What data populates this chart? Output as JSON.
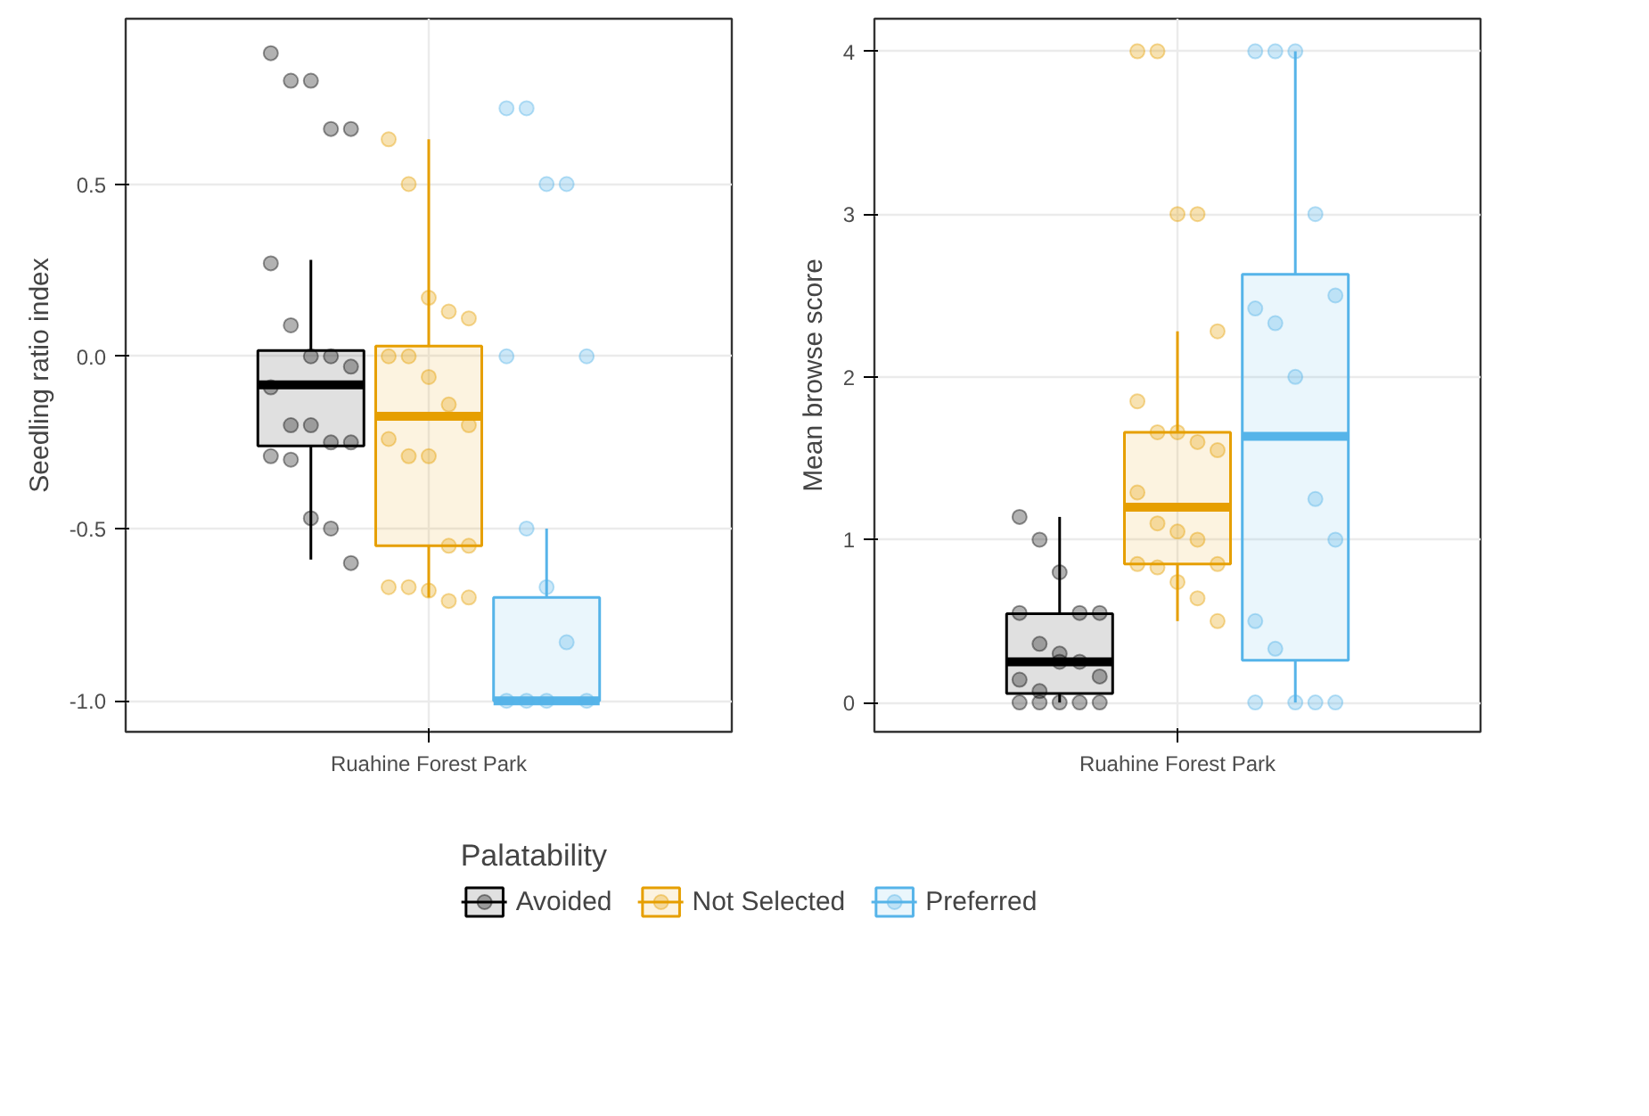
{
  "chart_data": [
    {
      "type": "box",
      "ylabel": "Seedling ratio index",
      "categories": [
        "Ruahine Forest Park"
      ],
      "ylim": [
        -1.09,
        0.98
      ],
      "yticks": [
        {
          "value": -1.0,
          "label": "-1.0"
        },
        {
          "value": -0.5,
          "label": "-0.5"
        },
        {
          "value": 0.0,
          "label": "0.0"
        },
        {
          "value": 0.5,
          "label": "0.5"
        }
      ],
      "grid": true,
      "legend": "bottom",
      "legend_title": "Palatability",
      "series": [
        {
          "name": "Avoided",
          "color": "#000000",
          "boxes": [
            {
              "low": -0.59,
              "q1": -0.26,
              "median": -0.083,
              "q3": 0.017,
              "high": 0.28
            }
          ]
        },
        {
          "name": "Not Selected",
          "color": "#e69f00",
          "boxes": [
            {
              "low": -0.7,
              "q1": -0.55,
              "median": -0.174,
              "q3": 0.03,
              "high": 0.63
            }
          ]
        },
        {
          "name": "Preferred",
          "color": "#56b4e9",
          "boxes": [
            {
              "low": -1.0,
              "q1": -1.0,
              "median": -1.0,
              "q3": -0.7,
              "high": -0.5
            }
          ]
        },
        {
          "type": "scatter",
          "color": "#000000",
          "x": [
            "Ruahine Forest Park",
            "Ruahine Forest Park",
            "Ruahine Forest Park",
            "Ruahine Forest Park",
            "Ruahine Forest Park",
            "Ruahine Forest Park",
            "Ruahine Forest Park",
            "Ruahine Forest Park",
            "Ruahine Forest Park",
            "Ruahine Forest Park",
            "Ruahine Forest Park",
            "Ruahine Forest Park",
            "Ruahine Forest Park",
            "Ruahine Forest Park",
            "Ruahine Forest Park",
            "Ruahine Forest Park",
            "Ruahine Forest Park",
            "Ruahine Forest Park",
            "Ruahine Forest Park",
            "Ruahine Forest Park"
          ],
          "values": [
            0.88,
            0.8,
            0.8,
            0.66,
            0.66,
            0.27,
            0.09,
            0.0,
            0.0,
            -0.03,
            -0.09,
            -0.2,
            -0.2,
            -0.25,
            -0.25,
            -0.29,
            -0.3,
            -0.47,
            -0.5,
            -0.6
          ]
        },
        {
          "type": "scatter",
          "color": "#e69f00",
          "x": [
            "Ruahine Forest Park",
            "Ruahine Forest Park",
            "Ruahine Forest Park",
            "Ruahine Forest Park",
            "Ruahine Forest Park",
            "Ruahine Forest Park",
            "Ruahine Forest Park",
            "Ruahine Forest Park",
            "Ruahine Forest Park",
            "Ruahine Forest Park",
            "Ruahine Forest Park",
            "Ruahine Forest Park",
            "Ruahine Forest Park",
            "Ruahine Forest Park",
            "Ruahine Forest Park",
            "Ruahine Forest Park",
            "Ruahine Forest Park",
            "Ruahine Forest Park",
            "Ruahine Forest Park",
            "Ruahine Forest Park"
          ],
          "values": [
            0.63,
            0.5,
            0.17,
            0.13,
            0.11,
            0.0,
            0.0,
            -0.06,
            -0.14,
            -0.2,
            -0.24,
            -0.29,
            -0.29,
            -0.55,
            -0.55,
            -0.67,
            -0.67,
            -0.68,
            -0.71,
            -0.7
          ]
        },
        {
          "type": "scatter",
          "color": "#56b4e9",
          "x": [
            "Ruahine Forest Park",
            "Ruahine Forest Park",
            "Ruahine Forest Park",
            "Ruahine Forest Park",
            "Ruahine Forest Park",
            "Ruahine Forest Park",
            "Ruahine Forest Park",
            "Ruahine Forest Park",
            "Ruahine Forest Park",
            "Ruahine Forest Park",
            "Ruahine Forest Park",
            "Ruahine Forest Park",
            "Ruahine Forest Park"
          ],
          "values": [
            0.72,
            0.72,
            0.5,
            0.5,
            0.0,
            0.0,
            -0.5,
            -0.67,
            -0.83,
            -1.0,
            -1.0,
            -1.0,
            -1.0
          ]
        }
      ]
    },
    {
      "type": "box",
      "ylabel": "Mean browse score",
      "categories": [
        "Ruahine Forest Park"
      ],
      "ylim": [
        -0.18,
        4.2
      ],
      "yticks": [
        0,
        1,
        2,
        3,
        4
      ],
      "grid": true,
      "series": [
        {
          "color": "#000000",
          "boxes": [
            {
              "low": 0.0,
              "q1": 0.055,
              "median": 0.25,
              "q3": 0.545,
              "high": 1.14
            }
          ]
        },
        {
          "color": "#e69f00",
          "boxes": [
            {
              "low": 0.5,
              "q1": 0.85,
              "median": 1.2,
              "q3": 1.66,
              "high": 2.28
            }
          ]
        },
        {
          "color": "#56b4e9",
          "boxes": [
            {
              "low": 0.0,
              "q1": 0.26,
              "median": 1.635,
              "q3": 2.63,
              "high": 4.0
            }
          ]
        },
        {
          "type": "scatter",
          "color": "#000000",
          "x": [
            "Ruahine Forest Park",
            "Ruahine Forest Park",
            "Ruahine Forest Park",
            "Ruahine Forest Park",
            "Ruahine Forest Park",
            "Ruahine Forest Park",
            "Ruahine Forest Park",
            "Ruahine Forest Park",
            "Ruahine Forest Park",
            "Ruahine Forest Park",
            "Ruahine Forest Park",
            "Ruahine Forest Park",
            "Ruahine Forest Park",
            "Ruahine Forest Park",
            "Ruahine Forest Park",
            "Ruahine Forest Park",
            "Ruahine Forest Park",
            "Ruahine Forest Park"
          ],
          "values": [
            1.14,
            1.0,
            0.8,
            0.55,
            0.55,
            0.55,
            0.36,
            0.25,
            0.25,
            0.16,
            0.14,
            0.07,
            0.0,
            0.0,
            0.0,
            0.0,
            0.0,
            0.3
          ]
        },
        {
          "type": "scatter",
          "color": "#e69f00",
          "x": [
            "Ruahine Forest Park",
            "Ruahine Forest Park",
            "Ruahine Forest Park",
            "Ruahine Forest Park",
            "Ruahine Forest Park",
            "Ruahine Forest Park",
            "Ruahine Forest Park",
            "Ruahine Forest Park",
            "Ruahine Forest Park",
            "Ruahine Forest Park",
            "Ruahine Forest Park",
            "Ruahine Forest Park",
            "Ruahine Forest Park",
            "Ruahine Forest Park",
            "Ruahine Forest Park",
            "Ruahine Forest Park",
            "Ruahine Forest Park",
            "Ruahine Forest Park",
            "Ruahine Forest Park",
            "Ruahine Forest Park"
          ],
          "values": [
            4.0,
            4.0,
            3.0,
            3.0,
            2.28,
            1.85,
            1.66,
            1.66,
            1.6,
            1.55,
            1.29,
            1.1,
            1.05,
            1.0,
            0.85,
            0.85,
            0.83,
            0.74,
            0.64,
            0.5
          ]
        },
        {
          "type": "scatter",
          "color": "#56b4e9",
          "x": [
            "Ruahine Forest Park",
            "Ruahine Forest Park",
            "Ruahine Forest Park",
            "Ruahine Forest Park",
            "Ruahine Forest Park",
            "Ruahine Forest Park",
            "Ruahine Forest Park",
            "Ruahine Forest Park",
            "Ruahine Forest Park",
            "Ruahine Forest Park",
            "Ruahine Forest Park",
            "Ruahine Forest Park",
            "Ruahine Forest Park",
            "Ruahine Forest Park",
            "Ruahine Forest Park",
            "Ruahine Forest Park"
          ],
          "values": [
            4.0,
            4.0,
            4.0,
            3.0,
            2.5,
            2.42,
            2.33,
            2.0,
            1.25,
            1.0,
            0.5,
            0.33,
            0.0,
            0.0,
            0.0,
            0.0
          ]
        }
      ]
    }
  ]
}
